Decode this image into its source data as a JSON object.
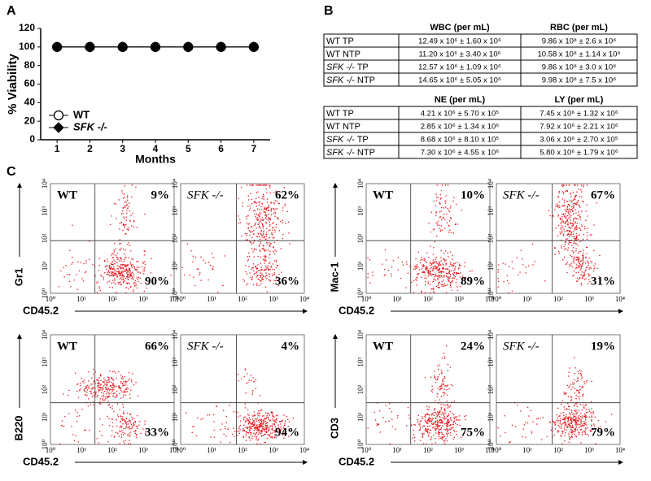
{
  "panel_labels": [
    "A",
    "B",
    "C"
  ],
  "chart_data": {
    "type": "line",
    "y_label": "% Viability",
    "x_label": "Months",
    "x": [
      1,
      2,
      3,
      4,
      5,
      6,
      7
    ],
    "xlim": [
      0.5,
      7.5
    ],
    "xticks": [
      1,
      2,
      3,
      4,
      5,
      6,
      7
    ],
    "ylim": [
      0,
      120
    ],
    "yticks": [
      0,
      20,
      40,
      60,
      80,
      100,
      120
    ],
    "legend": "lower left",
    "series": [
      {
        "name": "WT",
        "color": "#000000",
        "marker": "open-circle",
        "italic": false,
        "values": [
          100,
          100,
          100,
          100,
          100,
          100,
          100
        ]
      },
      {
        "name": "SFK -/-",
        "color": "#000000",
        "marker": "diamond",
        "italic": true,
        "values": [
          100,
          100,
          100,
          100,
          100,
          100,
          100
        ]
      }
    ]
  },
  "tables": [
    {
      "header": [
        "WBC (per mL)",
        "RBC (per mL)"
      ],
      "rows": [
        {
          "genotype": "WT",
          "italic": false,
          "sample": "TP",
          "cells": [
            "12.49 x 10⁶ ± 1.60 x 10⁶",
            "9.86 x 10⁸ ± 2.6 x 10⁸"
          ]
        },
        {
          "genotype": "WT",
          "italic": false,
          "sample": "NTP",
          "cells": [
            "11.20 x 10⁶ ± 3.40 x 10⁶",
            "10.58 x 10⁸ ± 1.14 x 10⁸"
          ]
        },
        {
          "genotype": "SFK -/-",
          "italic": true,
          "sample": "TP",
          "cells": [
            "12.57 x 10⁶ ± 1.09 x 10⁶",
            "9.86 x 10⁸ ± 3.0 x 10⁸"
          ]
        },
        {
          "genotype": "SFK -/-",
          "italic": true,
          "sample": "NTP",
          "cells": [
            "14.65 x 10⁶ ± 5.05 x 10⁶",
            "9.98 x 10⁸ ± 7.5 x 10⁸"
          ]
        }
      ]
    },
    {
      "header": [
        "NE (per mL)",
        "LY (per mL)"
      ],
      "rows": [
        {
          "genotype": "WT",
          "italic": false,
          "sample": "TP",
          "cells": [
            "4.21 x 10⁶ ± 5.70 x 10⁵",
            "7.45 x 10⁶ ± 1.32 x 10⁶"
          ]
        },
        {
          "genotype": "WT",
          "italic": false,
          "sample": "NTP",
          "cells": [
            "2.85 x 10⁶ ± 1.34 x 10⁶",
            "7.92 x 10⁶ ± 2.21 x 10⁶"
          ]
        },
        {
          "genotype": "SFK -/-",
          "italic": true,
          "sample": "TP",
          "cells": [
            "8.68 x 10⁶ ± 8.10 x 10⁵",
            "3.06 x 10⁶ ± 2.70 x 10⁵"
          ]
        },
        {
          "genotype": "SFK -/-",
          "italic": true,
          "sample": "NTP",
          "cells": [
            "7.30 x 10⁶ ± 4.55 x 10⁶",
            "5.80 x 10⁶ ± 1.79 x 10⁶"
          ]
        }
      ]
    }
  ],
  "flow": {
    "x_label": "CD45.2",
    "ticks": [
      "10⁰",
      "10¹",
      "10²",
      "10³",
      "10⁴"
    ],
    "dot_color": "#e8141b",
    "groups": [
      {
        "y_label": "Gr1",
        "plots": [
          {
            "sample": "WT",
            "italic": false,
            "upper": "9%",
            "lower": "90%"
          },
          {
            "sample": "SFK -/-",
            "italic": true,
            "upper": "62%",
            "lower": "36%"
          }
        ]
      },
      {
        "y_label": "Mac-1",
        "plots": [
          {
            "sample": "WT",
            "italic": false,
            "upper": "10%",
            "lower": "89%"
          },
          {
            "sample": "SFK -/-",
            "italic": true,
            "upper": "67%",
            "lower": "31%"
          }
        ]
      },
      {
        "y_label": "B220",
        "plots": [
          {
            "sample": "WT",
            "italic": false,
            "upper": "66%",
            "lower": "33%"
          },
          {
            "sample": "SFK -/-",
            "italic": true,
            "upper": "4%",
            "lower": "94%"
          }
        ]
      },
      {
        "y_label": "CD3",
        "plots": [
          {
            "sample": "WT",
            "italic": false,
            "upper": "24%",
            "lower": "75%"
          },
          {
            "sample": "SFK -/-",
            "italic": true,
            "upper": "19%",
            "lower": "79%"
          }
        ]
      }
    ]
  }
}
